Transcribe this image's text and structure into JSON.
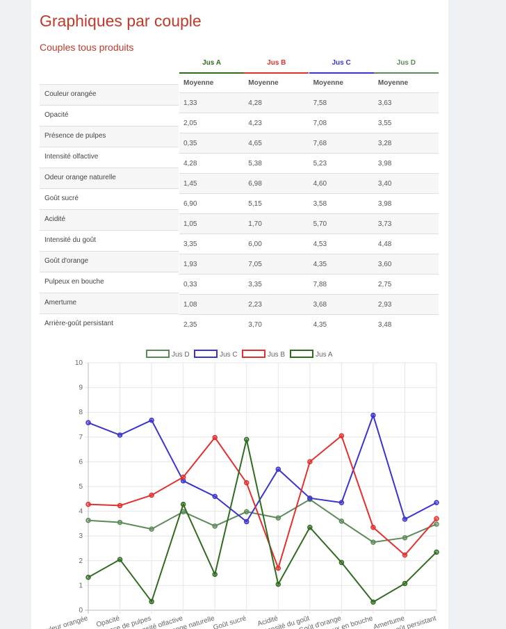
{
  "title": "Graphiques par couple",
  "subtitle": "Couples tous produits",
  "columns": [
    {
      "name": "Jus A",
      "color": "#2f6b1f"
    },
    {
      "name": "Jus B",
      "color": "#e0302f"
    },
    {
      "name": "Jus C",
      "color": "#3b34cc"
    },
    {
      "name": "Jus D",
      "color": "#5b8a58"
    }
  ],
  "sub_header": "Moyenne",
  "rows": [
    {
      "label": "Couleur orangée",
      "values": [
        "1,33",
        "4,28",
        "7,58",
        "3,63"
      ]
    },
    {
      "label": "Opacité",
      "values": [
        "2,05",
        "4,23",
        "7,08",
        "3,55"
      ]
    },
    {
      "label": "Présence de pulpes",
      "values": [
        "0,35",
        "4,65",
        "7,68",
        "3,28"
      ]
    },
    {
      "label": "Intensité olfactive",
      "values": [
        "4,28",
        "5,38",
        "5,23",
        "3,98"
      ]
    },
    {
      "label": "Odeur orange naturelle",
      "values": [
        "1,45",
        "6,98",
        "4,60",
        "3,40"
      ]
    },
    {
      "label": "Goût sucré",
      "values": [
        "6,90",
        "5,15",
        "3,58",
        "3,98"
      ]
    },
    {
      "label": "Acidité",
      "values": [
        "1,05",
        "1,70",
        "5,70",
        "3,73"
      ]
    },
    {
      "label": "Intensité du goût",
      "values": [
        "3,35",
        "6,00",
        "4,53",
        "4,48"
      ]
    },
    {
      "label": "Goût d'orange",
      "values": [
        "1,93",
        "7,05",
        "4,35",
        "3,60"
      ]
    },
    {
      "label": "Pulpeux en bouche",
      "values": [
        "0,33",
        "3,35",
        "7,88",
        "2,75"
      ]
    },
    {
      "label": "Amertume",
      "values": [
        "1,08",
        "2,23",
        "3,68",
        "2,93"
      ]
    },
    {
      "label": "Arrière-goût persistant",
      "values": [
        "2,35",
        "3,70",
        "4,35",
        "3,48"
      ]
    }
  ],
  "chart_data": {
    "type": "line",
    "categories": [
      "Couleur orangée",
      "Opacité",
      "Présence de pulpes",
      "Intensité olfactive",
      "Odeur orange naturelle",
      "Goût sucré",
      "Acidité",
      "Intensité du goût",
      "Goût d'orange",
      "Pulpeux en bouche",
      "Amertume",
      "Arrière-goût persistant"
    ],
    "ylim": [
      0,
      10
    ],
    "yticks": [
      0,
      1,
      2,
      3,
      4,
      5,
      6,
      7,
      8,
      9,
      10
    ],
    "grid": true,
    "legend": "top",
    "series": [
      {
        "name": "Jus D",
        "color": "#5b8a58",
        "values": [
          3.63,
          3.55,
          3.28,
          3.98,
          3.4,
          3.98,
          3.73,
          4.48,
          3.6,
          2.75,
          2.93,
          3.48
        ]
      },
      {
        "name": "Jus C",
        "color": "#3b34cc",
        "values": [
          7.58,
          7.08,
          7.68,
          5.23,
          4.6,
          3.58,
          5.7,
          4.53,
          4.35,
          7.88,
          3.68,
          4.35
        ]
      },
      {
        "name": "Jus B",
        "color": "#e0302f",
        "values": [
          4.28,
          4.23,
          4.65,
          5.38,
          6.98,
          5.15,
          1.7,
          6.0,
          7.05,
          3.35,
          2.23,
          3.7
        ]
      },
      {
        "name": "Jus A",
        "color": "#2f6b1f",
        "values": [
          1.33,
          2.05,
          0.35,
          4.28,
          1.45,
          6.9,
          1.05,
          3.35,
          1.93,
          0.33,
          1.08,
          2.35
        ]
      }
    ]
  }
}
